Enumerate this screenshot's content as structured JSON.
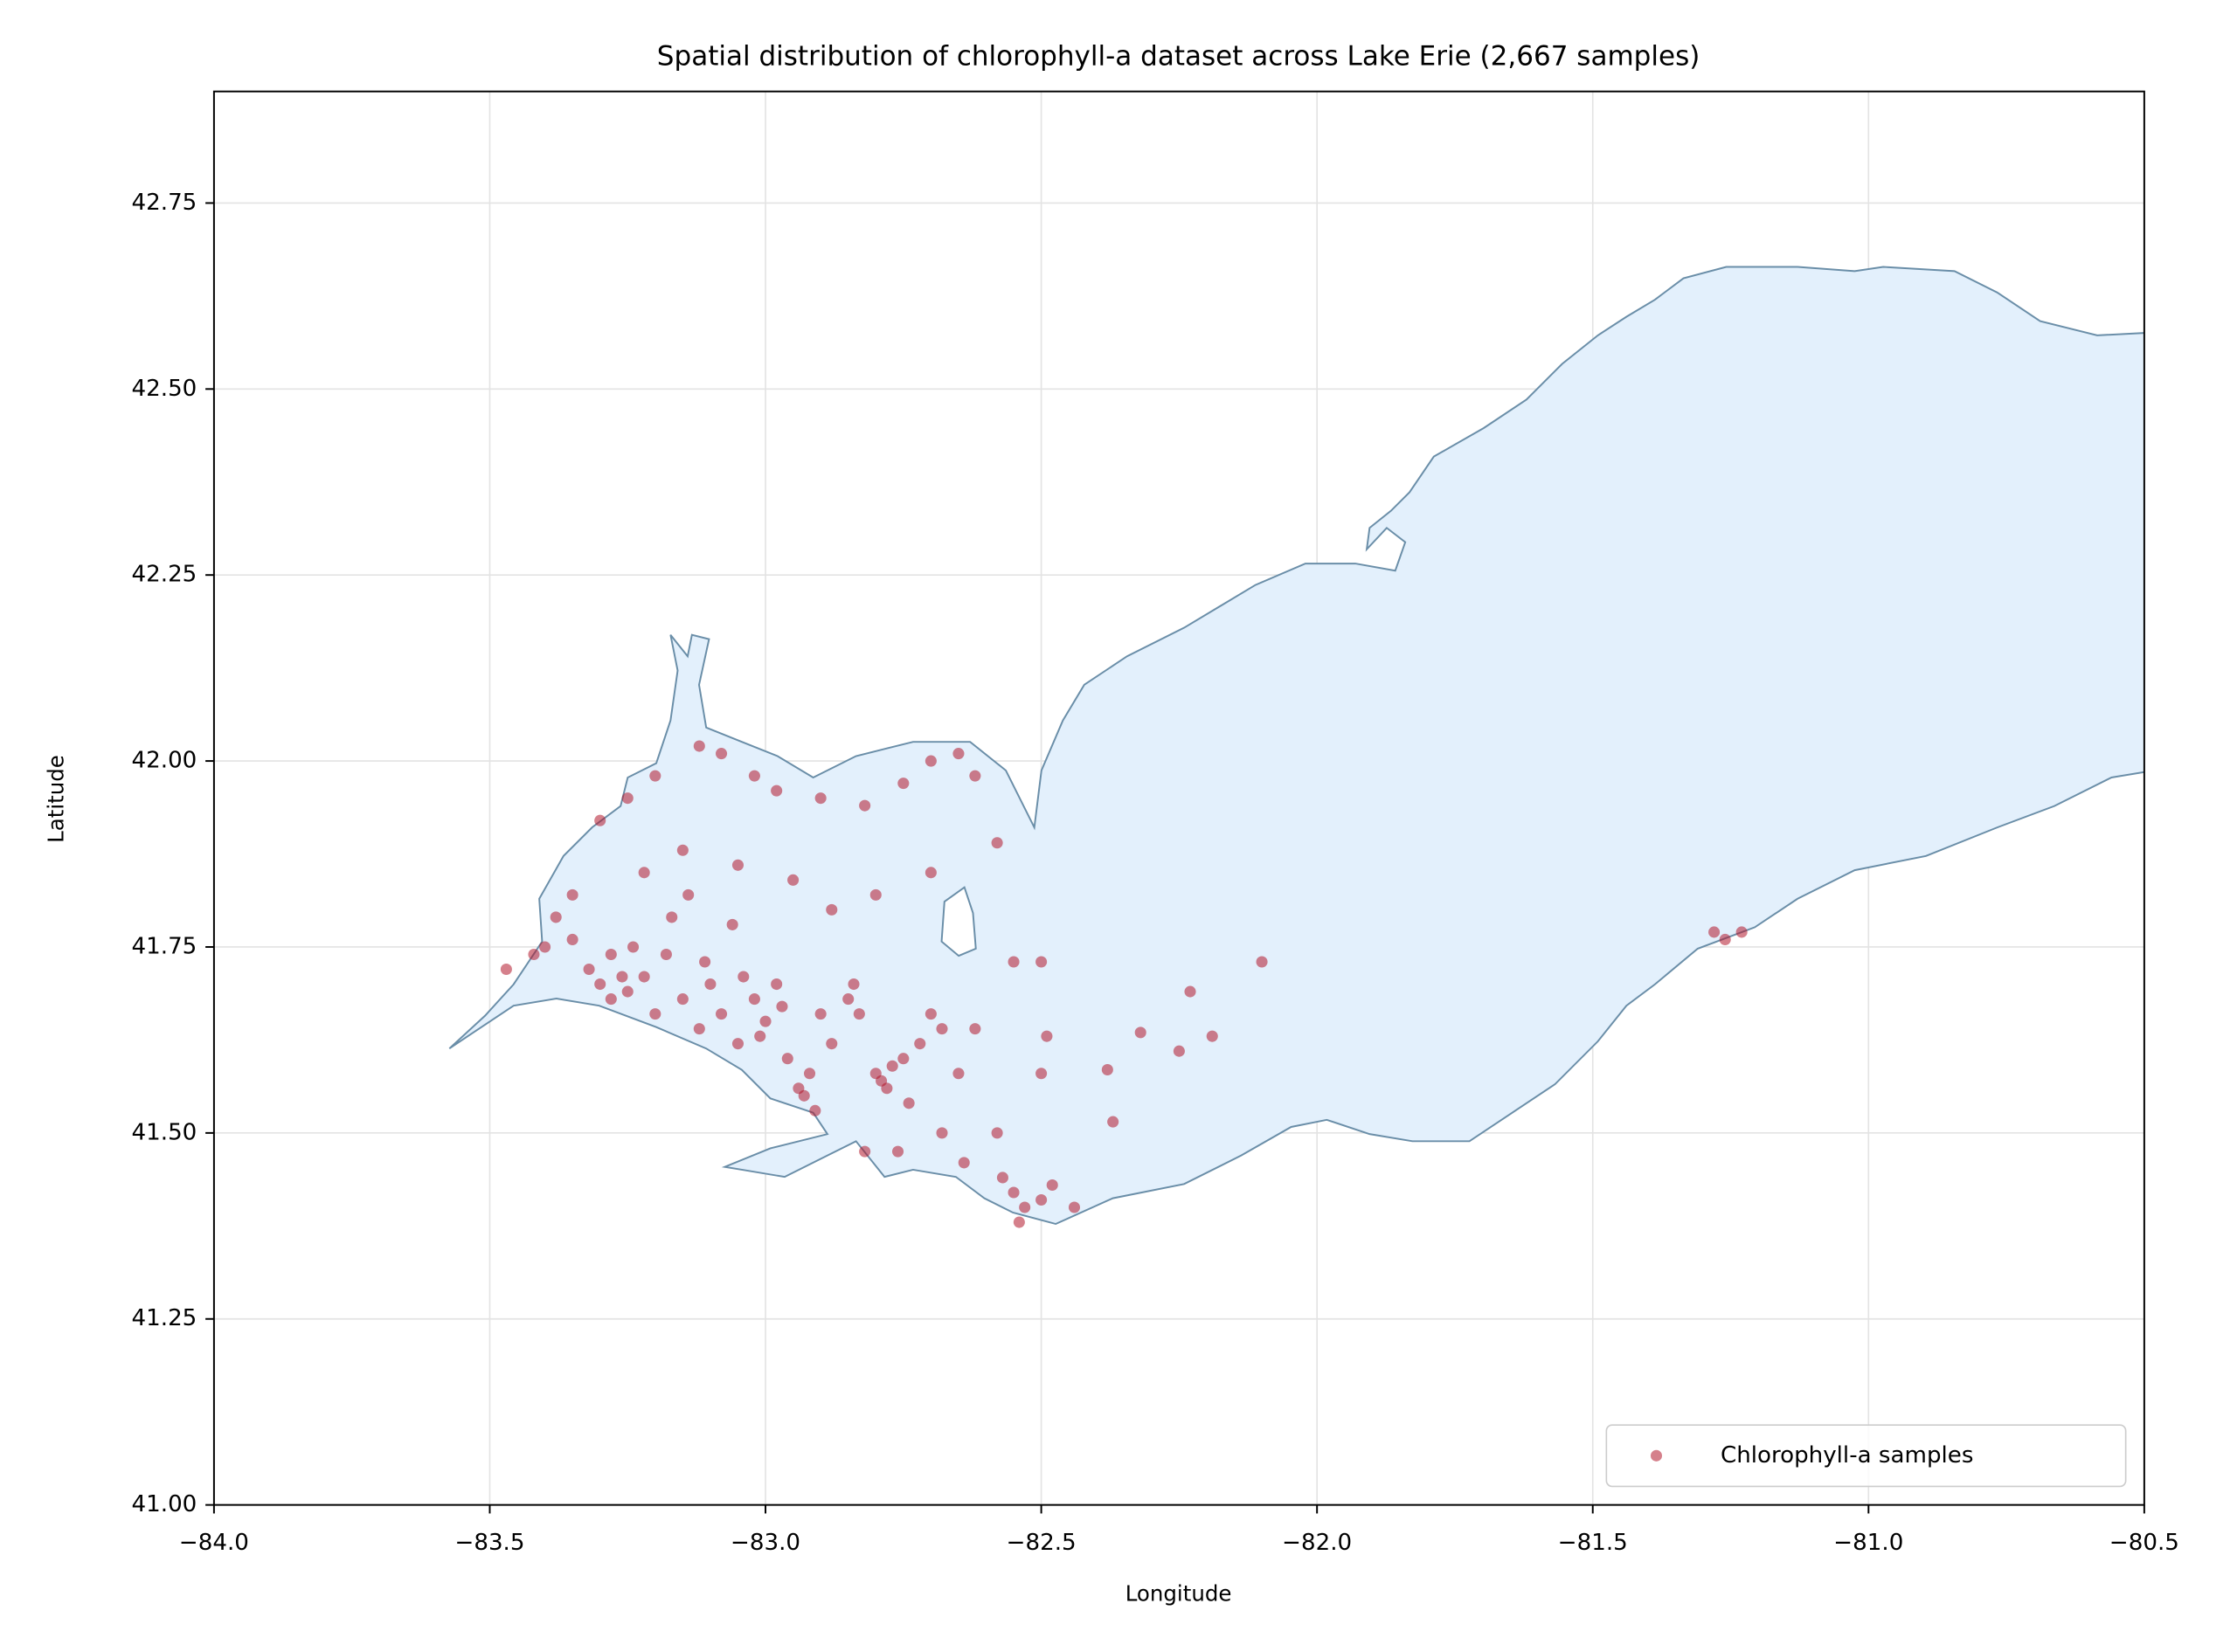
{
  "chart_data": {
    "type": "scatter",
    "title": "Spatial distribution of chlorophyll-a dataset across Lake Erie (2,667 samples)",
    "x_label": "Longitude",
    "y_label": "Latitude",
    "xlim": [
      -84,
      -80.5
    ],
    "ylim": [
      41,
      42.9
    ],
    "xticks": [
      {
        "value": -84,
        "label": "−84.0"
      },
      {
        "value": -83.5,
        "label": "−83.5"
      },
      {
        "value": -83,
        "label": "−83.0"
      },
      {
        "value": -82.5,
        "label": "−82.5"
      },
      {
        "value": -82,
        "label": "−82.0"
      },
      {
        "value": -81.5,
        "label": "−81.5"
      },
      {
        "value": -81,
        "label": "−81.0"
      },
      {
        "value": -80.5,
        "label": "−80.5"
      }
    ],
    "yticks": [
      {
        "value": 41,
        "label": "41.00"
      },
      {
        "value": 41.25,
        "label": "41.25"
      },
      {
        "value": 41.5,
        "label": "41.50"
      },
      {
        "value": 41.75,
        "label": "41.75"
      },
      {
        "value": 42,
        "label": "42.00"
      },
      {
        "value": 42.25,
        "label": "42.25"
      },
      {
        "value": 42.5,
        "label": "42.50"
      },
      {
        "value": 42.75,
        "label": "42.75"
      }
    ],
    "grid": true,
    "legend_position": "lower right",
    "alpha": 0.55,
    "series": [
      {
        "name": "Chlorophyll-a samples",
        "color": "#b2182b",
        "x": [
          -83.47,
          -83.42,
          -83.38,
          -83.35,
          -83.32,
          -83.3,
          -83.28,
          -83.25,
          -83.22,
          -83.2,
          -83.18,
          -83.15,
          -83.12,
          -83.1,
          -83.08,
          -83.05,
          -83.02,
          -83.0,
          -82.98,
          -82.96,
          -82.94,
          -82.92,
          -82.9,
          -82.88,
          -82.85,
          -82.83,
          -82.8,
          -82.78,
          -82.75,
          -82.72,
          -82.7,
          -82.68,
          -82.65,
          -82.62,
          -83.3,
          -83.25,
          -83.2,
          -83.12,
          -83.08,
          -83.02,
          -82.98,
          -82.9,
          -82.82,
          -82.75,
          -82.7,
          -82.65,
          -82.62,
          -82.58,
          -82.7,
          -82.8,
          -82.88,
          -82.95,
          -83.05,
          -83.15,
          -83.22,
          -83.35,
          -83.4,
          -82.55,
          -82.5,
          -82.49,
          -82.5,
          -82.38,
          -82.37,
          -82.32,
          -82.25,
          -82.23,
          -82.19,
          -82.1,
          -81.28,
          -81.26,
          -81.23,
          -82.82,
          -82.76,
          -82.68,
          -82.64,
          -82.58,
          -82.55,
          -82.53,
          -82.5,
          -82.48,
          -82.44,
          -82.57,
          -82.54,
          -83.28,
          -83.26,
          -83.24,
          -83.14,
          -83.11,
          -83.04,
          -83.01,
          -82.97,
          -82.93,
          -82.91,
          -82.79,
          -82.77,
          -82.74,
          -82.84,
          -83.06,
          -83.17
        ],
        "values": [
          41.72,
          41.74,
          41.79,
          41.76,
          41.72,
          41.7,
          41.74,
          41.69,
          41.71,
          41.66,
          41.74,
          41.68,
          41.64,
          41.7,
          41.66,
          41.62,
          41.68,
          41.65,
          41.7,
          41.6,
          41.56,
          41.58,
          41.66,
          41.62,
          41.68,
          41.66,
          41.58,
          41.56,
          41.6,
          41.62,
          41.66,
          41.64,
          41.58,
          41.64,
          41.92,
          41.95,
          41.98,
          42.02,
          42.01,
          41.98,
          41.96,
          41.95,
          41.94,
          41.97,
          42.0,
          42.01,
          41.98,
          41.89,
          41.85,
          41.82,
          41.8,
          41.84,
          41.86,
          41.88,
          41.85,
          41.82,
          41.75,
          41.73,
          41.73,
          41.63,
          41.58,
          41.585,
          41.515,
          41.635,
          41.61,
          41.69,
          41.63,
          41.73,
          41.77,
          41.76,
          41.77,
          41.475,
          41.475,
          41.5,
          41.46,
          41.5,
          41.42,
          41.4,
          41.41,
          41.43,
          41.4,
          41.44,
          41.38,
          41.68,
          41.71,
          41.75,
          41.82,
          41.73,
          41.71,
          41.63,
          41.67,
          41.55,
          41.53,
          41.57,
          41.59,
          41.54,
          41.7,
          41.78,
          41.79
        ]
      }
    ]
  }
}
